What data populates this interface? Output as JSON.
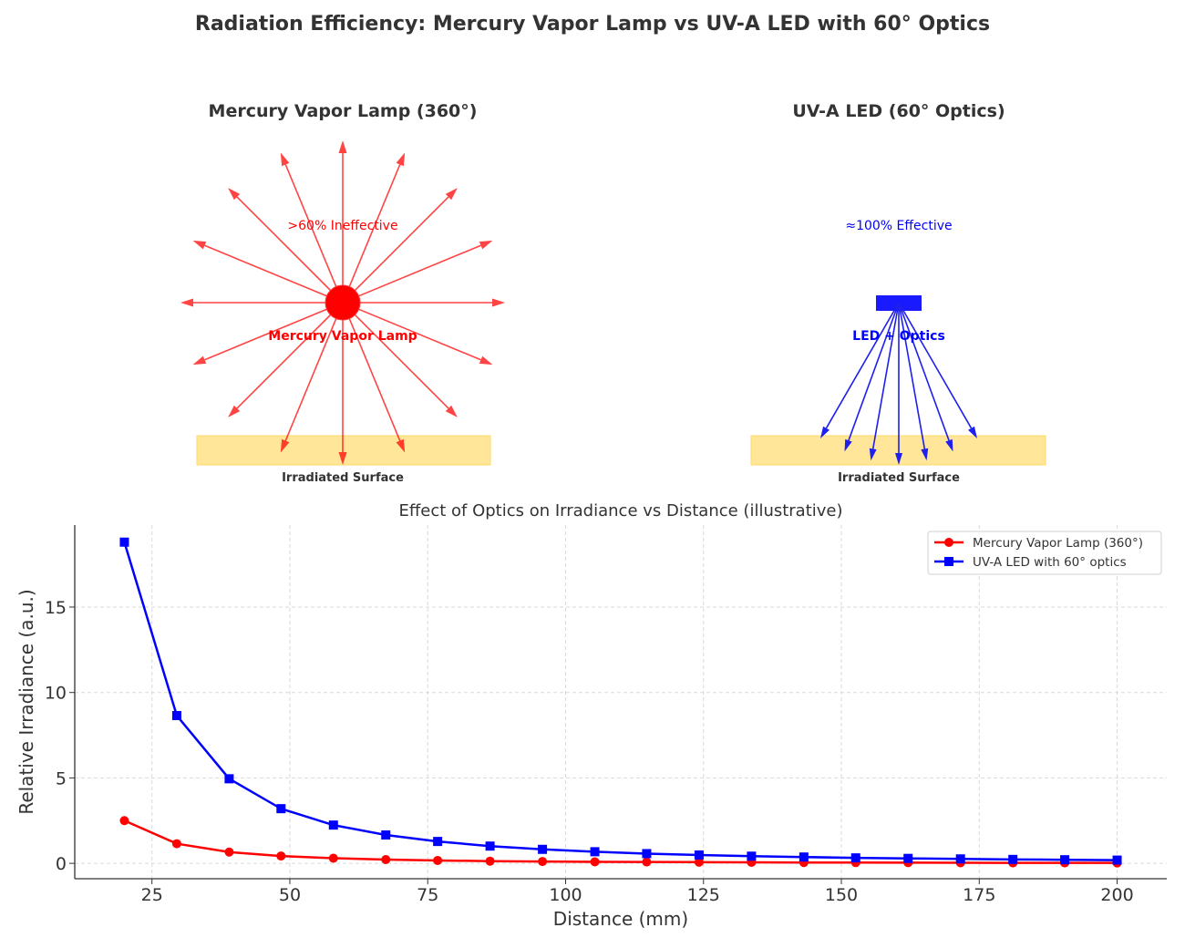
{
  "title": "Radiation Efficiency: Mercury Vapor Lamp vs UV-A LED with 60° Optics",
  "colors": {
    "mercury": "#ff0000",
    "led": "#0000ff",
    "surface": "#ffe699",
    "text": "#333333"
  },
  "diagrams": {
    "left": {
      "title": "Mercury Vapor Lamp (360°)",
      "efficiency_label": ">60% Ineffective",
      "source_label": "Mercury Vapor Lamp",
      "surface_label": "Irradiated Surface",
      "emission_angle_deg": 360,
      "ray_count": 16
    },
    "right": {
      "title": "UV-A LED (60° Optics)",
      "efficiency_label": "≈100% Effective",
      "source_label": "LED + Optics",
      "surface_label": "Irradiated Surface",
      "emission_angle_deg": 60,
      "ray_count": 7
    }
  },
  "chart_data": {
    "type": "line",
    "title": "Effect of Optics on Irradiance vs Distance (illustrative)",
    "xlabel": "Distance (mm)",
    "ylabel": "Relative Irradiance (a.u.)",
    "xlim": [
      11,
      209
    ],
    "ylim": [
      -0.9,
      19.8
    ],
    "xticks": [
      25,
      50,
      75,
      100,
      125,
      150,
      175,
      200
    ],
    "yticks": [
      0,
      5,
      10,
      15
    ],
    "grid": true,
    "legend_position": "top-right",
    "x": [
      20,
      29.5,
      39,
      48.4,
      57.9,
      67.4,
      76.8,
      86.3,
      95.8,
      105.3,
      114.7,
      124.2,
      133.7,
      143.2,
      152.6,
      162.1,
      171.6,
      181.1,
      190.5,
      200
    ],
    "series": [
      {
        "name": "Mercury Vapor Lamp (360°)",
        "color": "#ff0000",
        "marker": "circle",
        "values": [
          2.5,
          1.15,
          0.66,
          0.43,
          0.3,
          0.22,
          0.17,
          0.13,
          0.11,
          0.09,
          0.08,
          0.07,
          0.06,
          0.05,
          0.045,
          0.04,
          0.035,
          0.03,
          0.028,
          0.025
        ]
      },
      {
        "name": "UV-A LED with 60° optics",
        "color": "#0000ff",
        "marker": "square",
        "values": [
          18.8,
          8.65,
          4.95,
          3.2,
          2.24,
          1.66,
          1.28,
          1.01,
          0.82,
          0.68,
          0.57,
          0.49,
          0.42,
          0.37,
          0.32,
          0.29,
          0.26,
          0.23,
          0.21,
          0.19
        ]
      }
    ]
  }
}
